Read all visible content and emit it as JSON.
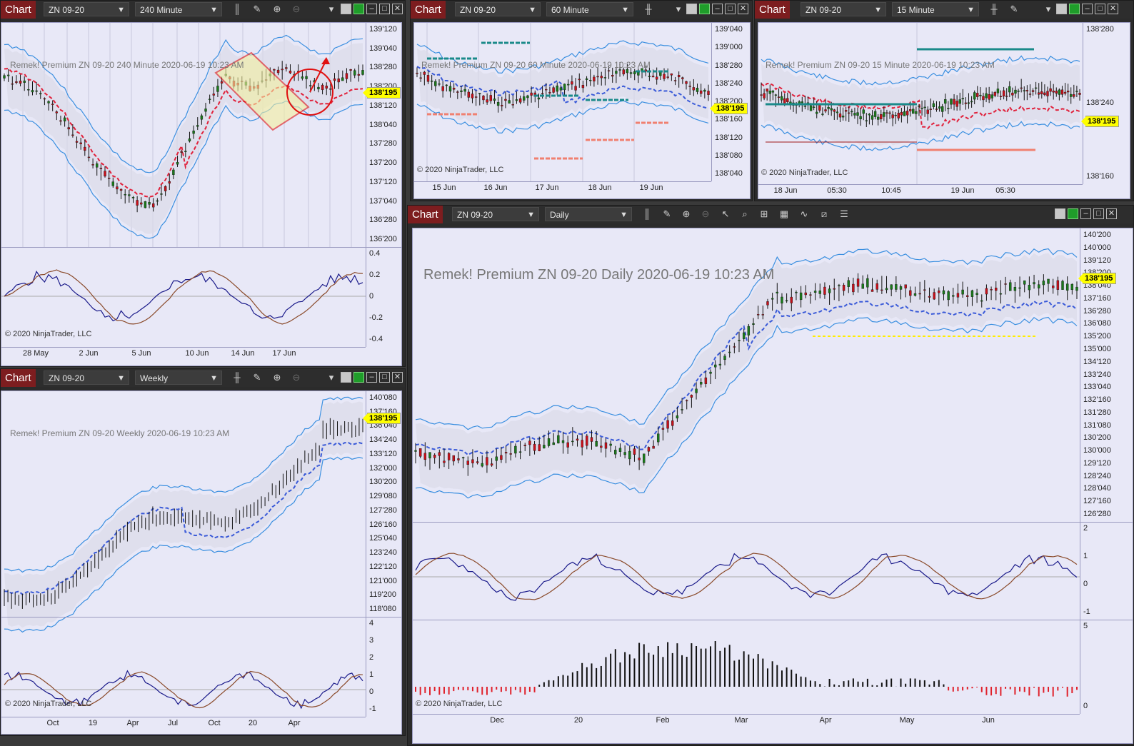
{
  "windows": {
    "w240": {
      "tab": "Chart",
      "instrument": "ZN 09-20",
      "interval": "240 Minute",
      "title": "Remek!  Premium  ZN 09-20  240 Minute  2020-06-19 10:23 AM",
      "copyright": "© 2020 NinjaTrader, LLC",
      "last_price": "138'195",
      "price_ticks": [
        "139'120",
        "139'040",
        "138'280",
        "138'200",
        "138'120",
        "138'040",
        "137'280",
        "137'200",
        "137'120",
        "137'040",
        "136'280",
        "136'200"
      ],
      "osc_ticks": [
        "0.4",
        "0.2",
        "0",
        "-0.2",
        "-0.4"
      ],
      "x_ticks": [
        "28 May",
        "2 Jun",
        "5 Jun",
        "10 Jun",
        "14 Jun",
        "17 Jun"
      ]
    },
    "w60": {
      "tab": "Chart",
      "instrument": "ZN 09-20",
      "interval": "60 Minute",
      "title": "Remek!  Premium  ZN 09-20  60 Minute  2020-06-19 10:23 AM",
      "copyright": "© 2020 NinjaTrader, LLC",
      "last_price": "138'195",
      "price_ticks": [
        "139'040",
        "139'000",
        "138'280",
        "138'240",
        "138'200",
        "138'160",
        "138'120",
        "138'080",
        "138'040"
      ],
      "x_ticks": [
        "15 Jun",
        "16 Jun",
        "17 Jun",
        "18 Jun",
        "19 Jun"
      ]
    },
    "w15": {
      "tab": "Chart",
      "instrument": "ZN 09-20",
      "interval": "15 Minute",
      "title": "Remek!  Premium  ZN 09-20  15 Minute  2020-06-19 10:23 AM",
      "copyright": "© 2020 NinjaTrader, LLC",
      "last_price": "138'195",
      "price_ticks": [
        "138'280",
        "138'240",
        "138'160"
      ],
      "x_ticks": [
        "18 Jun",
        "05:30",
        "10:45",
        "19 Jun",
        "05:30"
      ]
    },
    "wWeekly": {
      "tab": "Chart",
      "instrument": "ZN 09-20",
      "interval": "Weekly",
      "title": "Remek!  Premium  ZN 09-20  Weekly  2020-06-19 10:23 AM",
      "copyright": "© 2020 NinjaTrader, LLC",
      "last_price": "138'195",
      "price_ticks": [
        "140'080",
        "137'160",
        "136'040",
        "134'240",
        "133'120",
        "132'000",
        "130'200",
        "129'080",
        "127'280",
        "126'160",
        "125'040",
        "123'240",
        "122'120",
        "121'000",
        "119'200",
        "118'080"
      ],
      "osc_ticks": [
        "4",
        "3",
        "2",
        "1",
        "0",
        "-1"
      ],
      "x_ticks": [
        "Oct",
        "19",
        "Apr",
        "Jul",
        "Oct",
        "20",
        "Apr"
      ]
    },
    "wDaily": {
      "tab": "Chart",
      "instrument": "ZN 09-20",
      "interval": "Daily",
      "title": "Remek!  Premium  ZN 09-20  Daily  2020-06-19 10:23 AM",
      "copyright": "© 2020 NinjaTrader, LLC",
      "last_price": "138'195",
      "price_ticks": [
        "140'200",
        "140'000",
        "139'120",
        "138'200",
        "138'040",
        "137'160",
        "136'280",
        "136'080",
        "135'200",
        "135'000",
        "134'120",
        "133'240",
        "133'040",
        "132'160",
        "131'280",
        "131'080",
        "130'200",
        "130'000",
        "129'120",
        "128'240",
        "128'040",
        "127'160",
        "126'280"
      ],
      "osc_ticks": [
        "2",
        "1",
        "0",
        "-1"
      ],
      "hist_ticks": [
        "5",
        "0"
      ],
      "x_ticks": [
        "Dec",
        "20",
        "Feb",
        "Mar",
        "Apr",
        "May",
        "Jun"
      ]
    }
  },
  "colors": {
    "bull": "#1a7a1a",
    "bear": "#c8101a",
    "band": "#3a8fe0",
    "trail_bear": "#e0203a",
    "trail_bull": "#3a5ad8",
    "level": "#ffee00",
    "teal": "#1a8a8a",
    "salmon": "#f08070",
    "osc_fast": "#1a1a8a",
    "osc_slow": "#8a4a2a",
    "chart_tag": "#7d1d1f"
  }
}
